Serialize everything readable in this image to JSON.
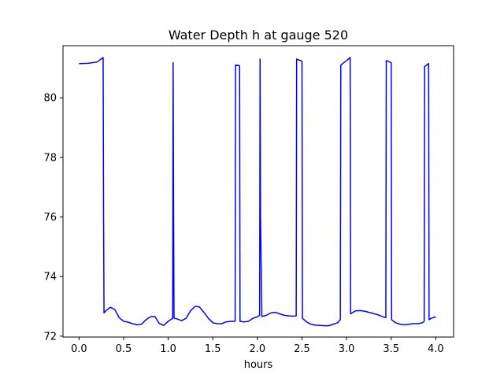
{
  "chart_data": {
    "type": "line",
    "title": "Water Depth h at gauge 520",
    "xlabel": "hours",
    "ylabel": "",
    "xlim": [
      -0.18,
      4.2
    ],
    "ylim": [
      71.97,
      81.75
    ],
    "xticks": [
      0.0,
      0.5,
      1.0,
      1.5,
      2.0,
      2.5,
      3.0,
      3.5,
      4.0
    ],
    "xtick_labels": [
      "0.0",
      "0.5",
      "1.0",
      "1.5",
      "2.0",
      "2.5",
      "3.0",
      "3.5",
      "4.0"
    ],
    "yticks": [
      72,
      74,
      76,
      78,
      80
    ],
    "ytick_labels": [
      "72",
      "74",
      "76",
      "78",
      "80"
    ],
    "grid": false,
    "series": [
      {
        "color": "#0000ff",
        "x": [
          0.0,
          0.1,
          0.2,
          0.27,
          0.275,
          0.28,
          0.3,
          0.35,
          0.4,
          0.45,
          0.5,
          0.55,
          0.6,
          0.65,
          0.7,
          0.75,
          0.8,
          0.85,
          0.9,
          0.95,
          1.0,
          1.05,
          1.055,
          1.06,
          1.065,
          1.07,
          1.1,
          1.15,
          1.2,
          1.25,
          1.3,
          1.35,
          1.4,
          1.45,
          1.5,
          1.55,
          1.6,
          1.65,
          1.7,
          1.75,
          1.755,
          1.8,
          1.805,
          1.85,
          1.9,
          1.95,
          2.0,
          2.025,
          2.03,
          2.035,
          2.05,
          2.1,
          2.15,
          2.2,
          2.25,
          2.3,
          2.35,
          2.4,
          2.435,
          2.44,
          2.5,
          2.505,
          2.55,
          2.6,
          2.65,
          2.7,
          2.75,
          2.8,
          2.85,
          2.9,
          2.93,
          2.935,
          3.0,
          3.04,
          3.045,
          3.1,
          3.15,
          3.2,
          3.25,
          3.3,
          3.35,
          3.4,
          3.44,
          3.445,
          3.5,
          3.505,
          3.55,
          3.6,
          3.65,
          3.7,
          3.75,
          3.8,
          3.85,
          3.87,
          3.875,
          3.92,
          3.925,
          3.95,
          4.0
        ],
        "y": [
          81.15,
          81.16,
          81.2,
          81.35,
          76.0,
          72.78,
          72.85,
          72.97,
          72.9,
          72.62,
          72.5,
          72.47,
          72.42,
          72.38,
          72.4,
          72.55,
          72.65,
          72.66,
          72.42,
          72.36,
          72.5,
          72.6,
          81.18,
          76.0,
          72.62,
          72.6,
          72.58,
          72.52,
          72.6,
          72.85,
          73.0,
          72.98,
          72.8,
          72.6,
          72.45,
          72.42,
          72.42,
          72.48,
          72.5,
          72.5,
          81.1,
          81.08,
          72.5,
          72.48,
          72.5,
          72.6,
          72.65,
          72.7,
          81.3,
          76.0,
          72.66,
          72.7,
          72.78,
          72.8,
          72.75,
          72.7,
          72.68,
          72.67,
          72.68,
          81.3,
          81.23,
          72.6,
          72.48,
          72.4,
          72.37,
          72.36,
          72.35,
          72.35,
          72.4,
          72.45,
          72.55,
          81.1,
          81.25,
          81.35,
          72.75,
          72.85,
          72.86,
          72.84,
          72.8,
          72.76,
          72.72,
          72.66,
          72.62,
          81.25,
          81.18,
          72.55,
          72.45,
          72.4,
          72.38,
          72.4,
          72.42,
          72.42,
          72.45,
          72.5,
          81.05,
          81.15,
          72.55,
          72.6,
          72.65
        ]
      }
    ]
  }
}
